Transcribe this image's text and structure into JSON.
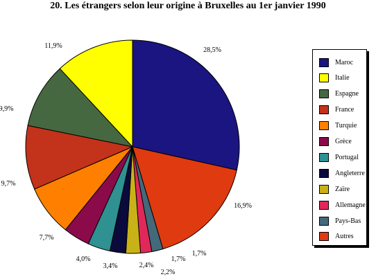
{
  "chart_data": {
    "type": "pie",
    "title": "20.  Les étrangers selon leur origine à Bruxelles au 1er janvier 1990",
    "slices": [
      {
        "name": "Maroc",
        "value": 28.5,
        "label": "28,5%",
        "color": "#1a1580"
      },
      {
        "name": "Autres",
        "value": 16.9,
        "label": "16,9%",
        "color": "#e03a10"
      },
      {
        "name": "Pays-Bas",
        "value": 1.7,
        "label": "1,7%",
        "color": "#43697a"
      },
      {
        "name": "Allemagne",
        "value": 1.7,
        "label": "1,7%",
        "color": "#e0295a"
      },
      {
        "name": "Zaïre",
        "value": 2.2,
        "label": "2,2%",
        "color": "#c9b217"
      },
      {
        "name": "Angleterre",
        "value": 2.4,
        "label": "2,4%",
        "color": "#0a0a3c"
      },
      {
        "name": "Portugal",
        "value": 3.4,
        "label": "3,4%",
        "color": "#2f9191"
      },
      {
        "name": "Grèce",
        "value": 4.0,
        "label": "4,0%",
        "color": "#8a0a4a"
      },
      {
        "name": "Turquie",
        "value": 7.7,
        "label": "7,7%",
        "color": "#ff8000"
      },
      {
        "name": "France",
        "value": 9.7,
        "label": "9,7%",
        "color": "#c3321a"
      },
      {
        "name": "Espagne",
        "value": 9.9,
        "label": "9,9%",
        "color": "#466840"
      },
      {
        "name": "Italie",
        "value": 11.9,
        "label": "11,9%",
        "color": "#ffff00"
      }
    ],
    "legend": {
      "placement": "right",
      "entries": [
        {
          "name": "Maroc",
          "color": "#1a1580"
        },
        {
          "name": "Italie",
          "color": "#ffff00"
        },
        {
          "name": "Espagne",
          "color": "#466840"
        },
        {
          "name": "France",
          "color": "#c3321a"
        },
        {
          "name": "Turquie",
          "color": "#ff8000"
        },
        {
          "name": "Grèce",
          "color": "#8a0a4a"
        },
        {
          "name": "Portugal",
          "color": "#2f9191"
        },
        {
          "name": "Angleterre",
          "color": "#0a0a3c"
        },
        {
          "name": "Zaïre",
          "color": "#c9b217"
        },
        {
          "name": "Allemagne",
          "color": "#e0295a"
        },
        {
          "name": "Pays-Bas",
          "color": "#43697a"
        },
        {
          "name": "Autres",
          "color": "#e03a10"
        }
      ]
    }
  }
}
